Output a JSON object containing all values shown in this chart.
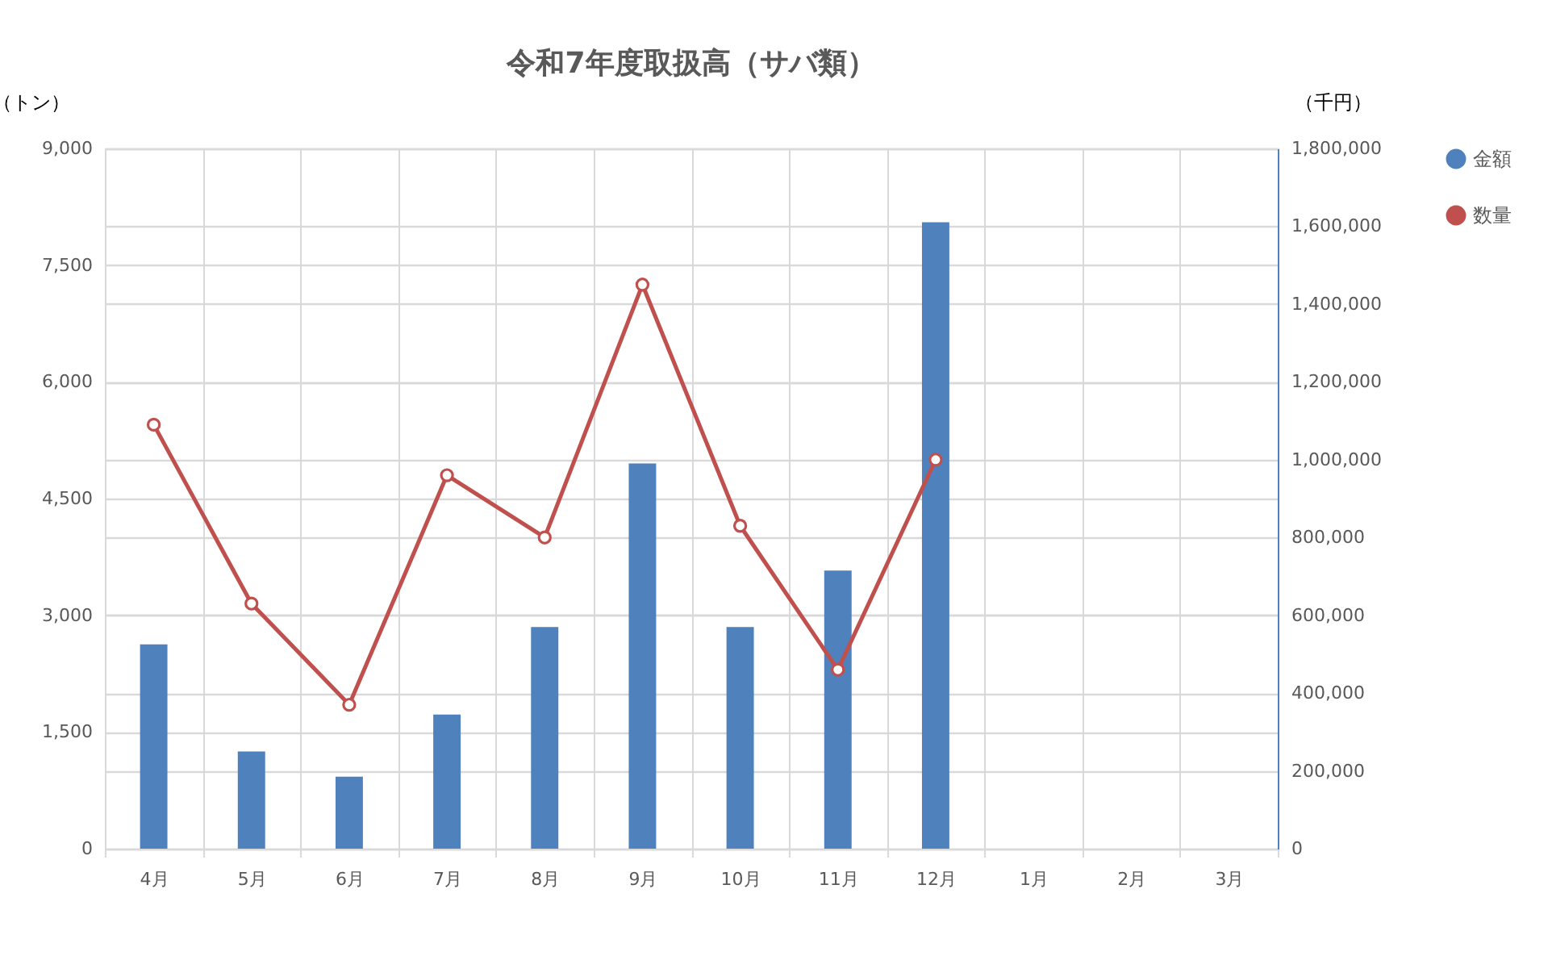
{
  "chart_data": {
    "type": "bar",
    "title": "令和7年度取扱高（サバ類）",
    "ylabel": "（トン）",
    "y2label": "（千円）",
    "categories": [
      "4月",
      "5月",
      "6月",
      "7月",
      "8月",
      "9月",
      "10月",
      "11月",
      "12月",
      "1月",
      "2月",
      "3月"
    ],
    "series": [
      {
        "name": "金額",
        "axis": "y2",
        "color": "#4f81bd",
        "values": [
          525000,
          250000,
          185000,
          345000,
          570000,
          990000,
          570000,
          715000,
          1610000,
          null,
          null,
          null
        ]
      },
      {
        "name": "数量",
        "type": "line",
        "axis": "y",
        "color": "#c0504d",
        "marker": "circle",
        "values": [
          5450,
          3150,
          1850,
          4800,
          4000,
          7250,
          4150,
          2300,
          5000,
          null,
          null,
          null
        ]
      }
    ],
    "ylim": [
      0,
      9000
    ],
    "yticks": [
      0,
      {
        "value": 1500,
        "label": "1,500"
      },
      {
        "value": 3000,
        "label": "3,000"
      },
      {
        "value": 4500,
        "label": "4,500"
      },
      {
        "value": 6000,
        "label": "6,000"
      },
      {
        "value": 7500,
        "label": "7,500"
      },
      {
        "value": 9000,
        "label": "9,000"
      }
    ],
    "y2lim": [
      0,
      1800000
    ],
    "y2ticks": [
      0,
      {
        "value": 200000,
        "label": "200,000"
      },
      {
        "value": 400000,
        "label": "400,000"
      },
      {
        "value": 600000,
        "label": "600,000"
      },
      {
        "value": 800000,
        "label": "800,000"
      },
      {
        "value": 1000000,
        "label": "1,000,000"
      },
      {
        "value": 1200000,
        "label": "1,200,000"
      },
      {
        "value": 1400000,
        "label": "1,400,000"
      },
      {
        "value": 1600000,
        "label": "1,600,000"
      },
      {
        "value": 1800000,
        "label": "1,800,000"
      }
    ],
    "grid": true,
    "legend": "right"
  }
}
